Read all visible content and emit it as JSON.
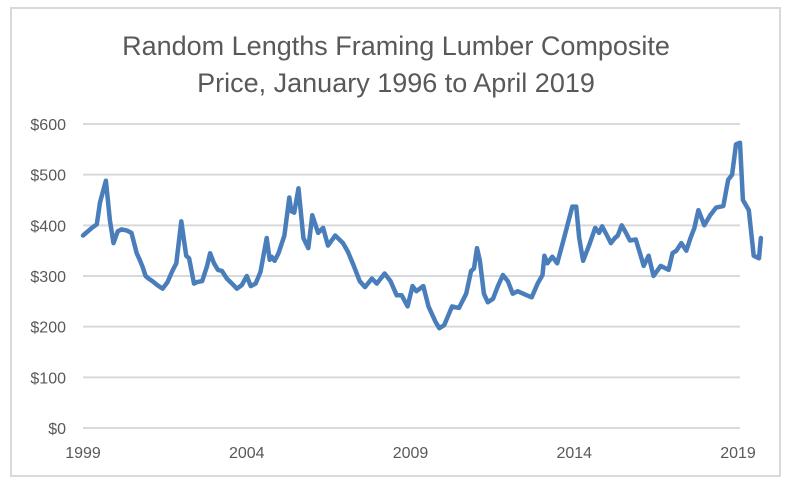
{
  "chart_data": {
    "type": "line",
    "title": "Random Lengths Framing Lumber Composite Price, January 1996 to April 2019",
    "title_lines": [
      "Random Lengths Framing Lumber Composite",
      "Price, January 1996 to April 2019"
    ],
    "xlabel": "",
    "ylabel": "",
    "xlim": [
      1999,
      2019
    ],
    "ylim": [
      0,
      600
    ],
    "x_ticks": [
      1999,
      2004,
      2009,
      2014,
      2019
    ],
    "x_tick_labels": [
      "1999",
      "2004",
      "2009",
      "2014",
      "2019"
    ],
    "y_ticks": [
      0,
      100,
      200,
      300,
      400,
      500,
      600
    ],
    "y_tick_labels": [
      "$0",
      "$100",
      "$200",
      "$300",
      "$400",
      "$500",
      "$600"
    ],
    "grid": "horizontal",
    "legend": "none",
    "series": [
      {
        "name": "Framing Lumber Composite Price",
        "color": "#4a7ebb",
        "x": [
          1999.0,
          1999.27,
          1999.42,
          1999.52,
          1999.7,
          1999.82,
          1999.93,
          2000.06,
          2000.18,
          2000.33,
          2000.48,
          2000.64,
          2000.73,
          2000.82,
          2000.91,
          2001.0,
          2001.12,
          2001.27,
          2001.43,
          2001.58,
          2001.73,
          2001.85,
          2002.0,
          2002.15,
          2002.24,
          2002.39,
          2002.48,
          2002.64,
          2002.79,
          2002.88,
          2003.0,
          2003.12,
          2003.24,
          2003.39,
          2003.55,
          2003.7,
          2003.85,
          2004.0,
          2004.12,
          2004.27,
          2004.42,
          2004.61,
          2004.7,
          2004.76,
          2004.85,
          2004.97,
          2005.15,
          2005.3,
          2005.36,
          2005.45,
          2005.58,
          2005.73,
          2005.88,
          2006.0,
          2006.18,
          2006.33,
          2006.48,
          2006.7,
          2006.94,
          2007.09,
          2007.27,
          2007.45,
          2007.61,
          2007.82,
          2007.97,
          2008.21,
          2008.39,
          2008.58,
          2008.73,
          2008.91,
          2009.06,
          2009.18,
          2009.39,
          2009.55,
          2009.76,
          2009.88,
          2010.03,
          2010.27,
          2010.48,
          2010.7,
          2010.85,
          2010.94,
          2011.03,
          2011.12,
          2011.24,
          2011.36,
          2011.52,
          2011.67,
          2011.82,
          2011.97,
          2012.12,
          2012.27,
          2012.55,
          2012.7,
          2012.88,
          2013.03,
          2013.09,
          2013.18,
          2013.33,
          2013.48,
          2013.67,
          2013.79,
          2013.94,
          2014.06,
          2014.15,
          2014.27,
          2014.45,
          2014.64,
          2014.76,
          2014.85,
          2015.0,
          2015.12,
          2015.24,
          2015.33,
          2015.45,
          2015.58,
          2015.7,
          2015.88,
          2016.03,
          2016.12,
          2016.27,
          2016.42,
          2016.64,
          2016.88,
          2017.0,
          2017.12,
          2017.27,
          2017.42,
          2017.55,
          2017.67,
          2017.79,
          2017.97,
          2018.15,
          2018.33,
          2018.55,
          2018.7,
          2018.82,
          2018.94,
          2019.06,
          2019.15,
          2019.33,
          2019.48,
          2019.64,
          2019.7
        ],
        "values": [
          380,
          395,
          402,
          445,
          488,
          410,
          365,
          388,
          392,
          390,
          385,
          345,
          332,
          318,
          300,
          295,
          290,
          282,
          275,
          288,
          310,
          325,
          408,
          340,
          335,
          285,
          288,
          290,
          320,
          345,
          325,
          312,
          310,
          295,
          285,
          275,
          282,
          300,
          280,
          285,
          308,
          375,
          332,
          338,
          330,
          345,
          380,
          455,
          428,
          425,
          473,
          375,
          355,
          420,
          385,
          395,
          360,
          380,
          365,
          348,
          320,
          290,
          278,
          295,
          285,
          305,
          290,
          262,
          262,
          240,
          280,
          270,
          280,
          240,
          210,
          197,
          203,
          240,
          237,
          265,
          310,
          315,
          355,
          330,
          265,
          248,
          255,
          280,
          302,
          290,
          265,
          270,
          262,
          258,
          285,
          302,
          340,
          325,
          338,
          325,
          370,
          400,
          437,
          437,
          375,
          330,
          360,
          395,
          385,
          398,
          380,
          365,
          375,
          380,
          400,
          385,
          370,
          372,
          340,
          320,
          340,
          300,
          320,
          312,
          345,
          350,
          365,
          350,
          375,
          395,
          430,
          400,
          420,
          435,
          438,
          490,
          500,
          560,
          563,
          450,
          430,
          340,
          335,
          375
        ]
      }
    ]
  }
}
